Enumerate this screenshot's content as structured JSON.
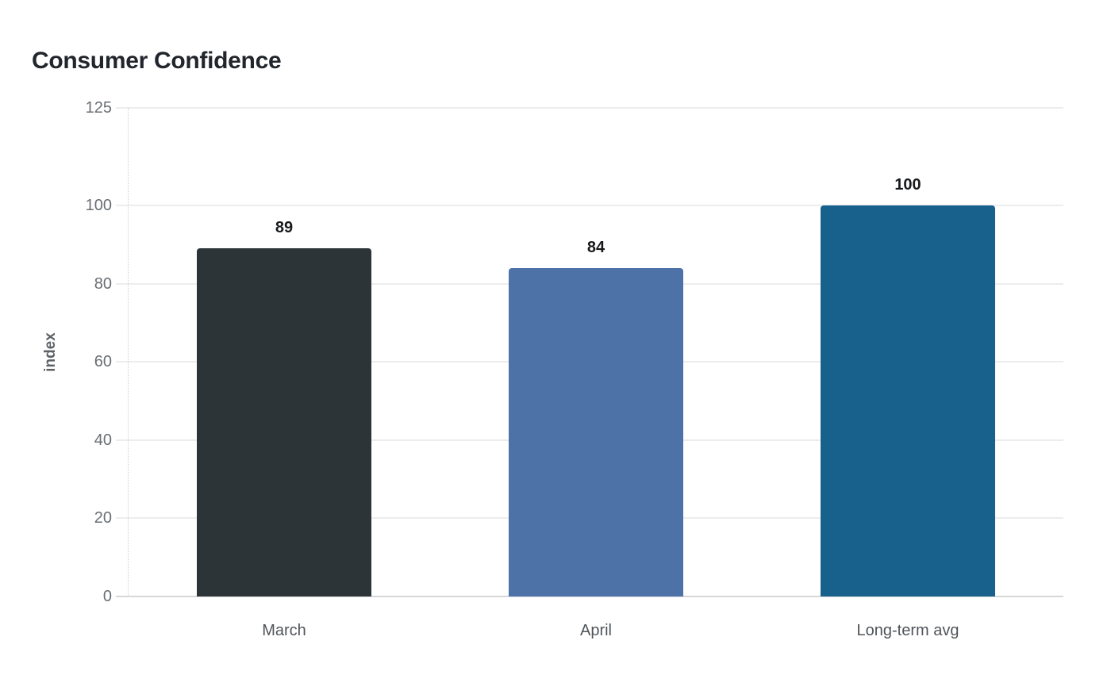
{
  "chart_data": {
    "type": "bar",
    "title": "Consumer Confidence",
    "categories": [
      "March",
      "April",
      "Long-term avg"
    ],
    "values": [
      89,
      84,
      100
    ],
    "bar_labels": [
      "89",
      "84",
      "100"
    ],
    "bar_colors": [
      "#2c3437",
      "#4c72a8",
      "#17618c"
    ],
    "xlabel": "",
    "ylabel": "index",
    "ylim": [
      0,
      125
    ],
    "yticks": [
      0,
      20,
      40,
      60,
      80,
      100,
      125
    ],
    "grid": "horizontal-only",
    "legend": "none",
    "background": "#ffffff",
    "gridline_color": "#ededed",
    "baseline_color": "#d7d7d7",
    "axis_line_style": "dotted",
    "axis_line_color": "#cfcfcf",
    "title_color": "#21262c",
    "tick_label_color": "#6a6e73",
    "category_label_color": "#50555a",
    "value_label_color": "#17191c"
  }
}
